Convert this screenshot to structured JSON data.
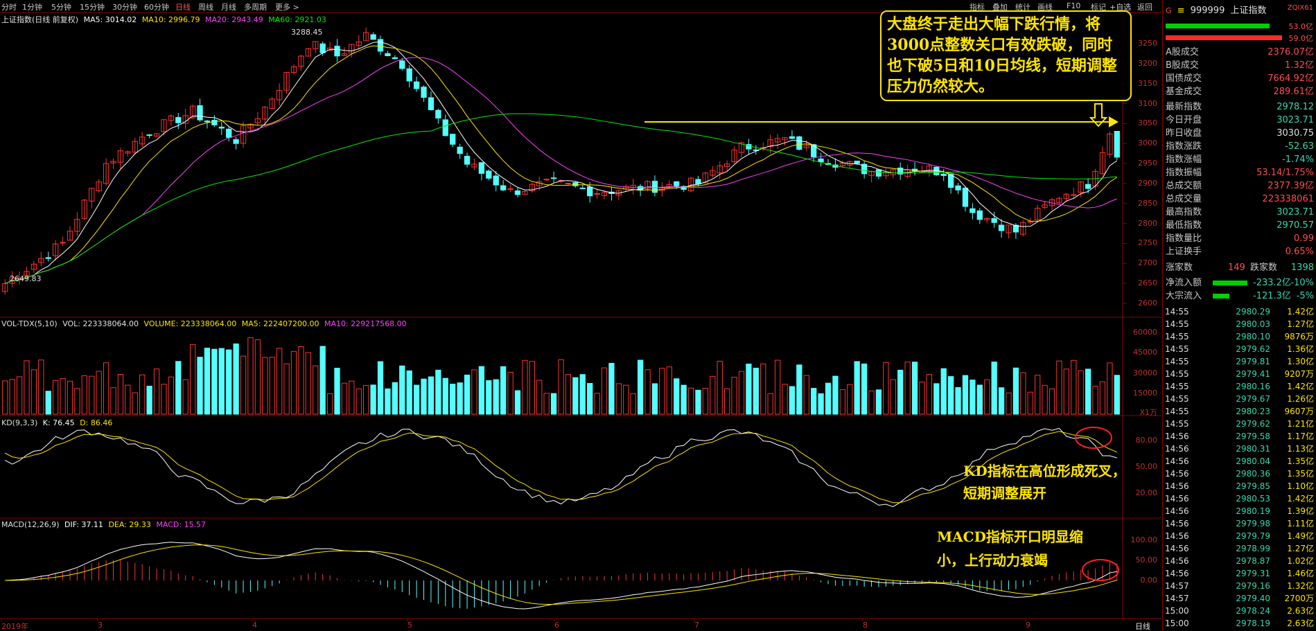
{
  "toolbar": {
    "periods": [
      "分时",
      "1分钟",
      "5分钟",
      "15分钟",
      "30分钟",
      "60分钟",
      "日线",
      "周线",
      "月线",
      "多周期",
      "更多 >"
    ],
    "active_period": "日线",
    "right_buttons": [
      "指标",
      "叠加",
      "统计",
      "画线",
      "F10",
      "标记",
      "+自选",
      "返回"
    ]
  },
  "main": {
    "title": "上证指数(日线 前复权)",
    "ma5": "MA5: 3014.02",
    "ma10": "MA10: 2996.79",
    "ma20": "MA20: 2943.49",
    "ma60": "MA60: 2921.03",
    "high_label": "3288.45",
    "low_label": "2649.83",
    "axis": [
      "3250",
      "3200",
      "3150",
      "3100",
      "3050",
      "3000",
      "2950",
      "2900",
      "2850",
      "2800",
      "2750",
      "2700",
      "2650",
      "2600"
    ],
    "note": "大盘终于走出大幅下跌行情，将3000点整数关口有效跌破，同时也下破5日和10日均线，短期调整压力仍然较大。"
  },
  "volume": {
    "title": "VOL-TDX(5,10)",
    "vol": "VOL: 223338064.00",
    "volume": "VOLUME: 223338064.00",
    "ma5": "MA5: 222407200.00",
    "ma10": "MA10: 229217568.00",
    "axis": [
      "60000",
      "45000",
      "30000",
      "15000"
    ],
    "unit": "X1万"
  },
  "kd": {
    "title": "KD(9,3,3)",
    "k": "K: 76.45",
    "d": "D: 86.46",
    "axis": [
      "80.00",
      "50.00",
      "20.00"
    ],
    "note": "KD指标在高位形成死叉，短期调整展开"
  },
  "macd": {
    "title": "MACD(12,26,9)",
    "dif": "DIF: 37.11",
    "dea": "DEA: 29.33",
    "macd": "MACD: 15.57",
    "axis": [
      "100.00",
      "50.00",
      "0.00"
    ],
    "note": "MACD指标开口明显缩小，上行动力衰竭"
  },
  "dates": {
    "labels": [
      "2019年",
      "3",
      "4",
      "5",
      "6",
      "7",
      "8",
      "9"
    ],
    "mode": "日线"
  },
  "quote": {
    "code": "999999",
    "name": "上证指数",
    "tag": "ZQIX61",
    "bar_top_right": "53.0亿",
    "bar_bottom_right": "59.0亿",
    "stats": [
      {
        "k": "A股成交",
        "v": "2376.07亿",
        "c": "r"
      },
      {
        "k": "B股成交",
        "v": "1.32亿",
        "c": "r"
      },
      {
        "k": "国债成交",
        "v": "7664.92亿",
        "c": "r"
      },
      {
        "k": "基金成交",
        "v": "289.61亿",
        "c": "r"
      },
      {
        "k": "最新指数",
        "v": "2978.12",
        "c": "g"
      },
      {
        "k": "今日开盘",
        "v": "3023.71",
        "c": "g"
      },
      {
        "k": "昨日收盘",
        "v": "3030.75",
        "c": "w"
      },
      {
        "k": "指数涨跌",
        "v": "-52.63",
        "c": "g"
      },
      {
        "k": "指数涨幅",
        "v": "-1.74%",
        "c": "g"
      },
      {
        "k": "指数振幅",
        "v": "53.14/1.75%",
        "c": "r"
      },
      {
        "k": "总成交额",
        "v": "2377.39亿",
        "c": "r"
      },
      {
        "k": "总成交量",
        "v": "223338061",
        "c": "r"
      },
      {
        "k": "最高指数",
        "v": "3023.71",
        "c": "g"
      },
      {
        "k": "最低指数",
        "v": "2970.57",
        "c": "g"
      },
      {
        "k": "指数量比",
        "v": "0.99",
        "c": "r"
      },
      {
        "k": "上证换手",
        "v": "0.65%",
        "c": "r"
      }
    ],
    "up_label": "涨家数",
    "up_count": "149",
    "down_label": "跌家数",
    "down_count": "1398",
    "net_inflow_label": "净流入额",
    "net_inflow": "-233.2亿",
    "net_inflow_pct": "-10%",
    "big_inflow_label": "大宗流入",
    "big_inflow": "-121.3亿",
    "big_inflow_pct": "-5%"
  },
  "ticks": [
    [
      "14:55",
      "2980.29",
      "1.42亿"
    ],
    [
      "14:55",
      "2980.03",
      "1.27亿"
    ],
    [
      "14:55",
      "2980.10",
      "9876万"
    ],
    [
      "14:55",
      "2979.62",
      "1.36亿"
    ],
    [
      "14:55",
      "2979.81",
      "1.30亿"
    ],
    [
      "14:55",
      "2979.41",
      "9207万"
    ],
    [
      "14:55",
      "2980.16",
      "1.42亿"
    ],
    [
      "14:55",
      "2979.67",
      "1.26亿"
    ],
    [
      "14:55",
      "2980.23",
      "9607万"
    ],
    [
      "14:55",
      "2979.62",
      "1.21亿"
    ],
    [
      "14:56",
      "2979.58",
      "1.17亿"
    ],
    [
      "14:56",
      "2980.31",
      "1.13亿"
    ],
    [
      "14:56",
      "2980.04",
      "1.35亿"
    ],
    [
      "14:56",
      "2980.36",
      "1.35亿"
    ],
    [
      "14:56",
      "2979.85",
      "1.10亿"
    ],
    [
      "14:56",
      "2980.53",
      "1.42亿"
    ],
    [
      "14:56",
      "2980.19",
      "1.39亿"
    ],
    [
      "14:56",
      "2979.98",
      "1.11亿"
    ],
    [
      "14:56",
      "2979.79",
      "1.49亿"
    ],
    [
      "14:56",
      "2978.99",
      "1.27亿"
    ],
    [
      "14:56",
      "2978.87",
      "1.02亿"
    ],
    [
      "14:56",
      "2979.31",
      "1.46亿"
    ],
    [
      "14:57",
      "2979.16",
      "1.32亿"
    ],
    [
      "14:57",
      "2979.40",
      "2700万"
    ],
    [
      "15:00",
      "2978.24",
      "2.63亿"
    ],
    [
      "15:00",
      "2978.19",
      "2.63亿"
    ]
  ],
  "colors": {
    "up": "#ff3232",
    "down": "#54ffff",
    "ma5": "#ffffff",
    "ma10": "#ffe500",
    "ma20": "#ff40ff",
    "ma60": "#00ee00",
    "note": "#ffe500",
    "frame": "#8b0000"
  }
}
